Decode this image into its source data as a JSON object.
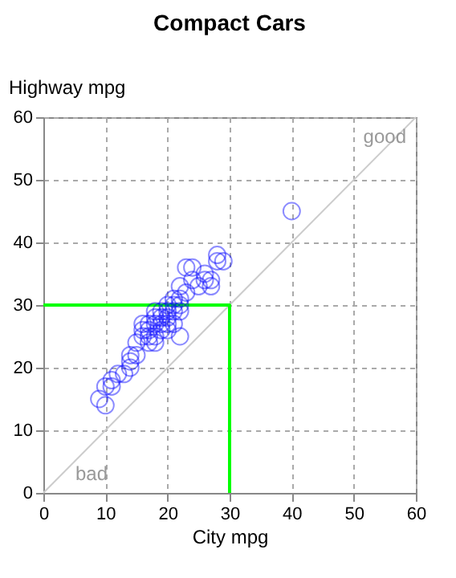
{
  "chart_data": {
    "type": "scatter",
    "title": "Compact Cars",
    "xlabel": "City mpg",
    "ylabel": "Highway mpg",
    "xlim": [
      0,
      60
    ],
    "ylim": [
      0,
      60
    ],
    "xticks": [
      0,
      10,
      20,
      30,
      40,
      50,
      60
    ],
    "yticks": [
      0,
      10,
      20,
      30,
      40,
      50,
      60
    ],
    "grid": true,
    "series": [
      {
        "type": "line",
        "color": "#cccccc",
        "x": [
          0,
          60
        ],
        "values": [
          0,
          60
        ]
      },
      {
        "type": "line",
        "color": "#00ff00",
        "x": [
          0,
          30,
          30
        ],
        "values": [
          30,
          30,
          0
        ]
      },
      {
        "marker": "circle",
        "color": "#0000ff",
        "x": [
          9,
          10,
          10,
          11,
          11,
          12,
          13,
          14,
          14,
          14,
          15,
          15,
          16,
          16,
          16,
          17,
          17,
          17,
          17,
          18,
          18,
          18,
          18,
          18,
          19,
          19,
          19,
          19,
          20,
          20,
          20,
          20,
          20,
          21,
          21,
          21,
          21,
          22,
          22,
          22,
          22,
          22,
          23,
          23,
          24,
          24,
          25,
          26,
          26,
          27,
          27,
          28,
          29,
          28,
          40
        ],
        "values": [
          15,
          14,
          17,
          18,
          17,
          19,
          19,
          20,
          21,
          22,
          22,
          24,
          25,
          27,
          26,
          25,
          24,
          26,
          27,
          25,
          27,
          28,
          29,
          24,
          26,
          28,
          29,
          27,
          28,
          29,
          30,
          27,
          26,
          29,
          30,
          31,
          27,
          29,
          30,
          31,
          25,
          33,
          36,
          32,
          34,
          36,
          33,
          35,
          34,
          33,
          34,
          37,
          37,
          38,
          45
        ]
      }
    ],
    "annotations": [
      "good",
      "bad"
    ]
  }
}
